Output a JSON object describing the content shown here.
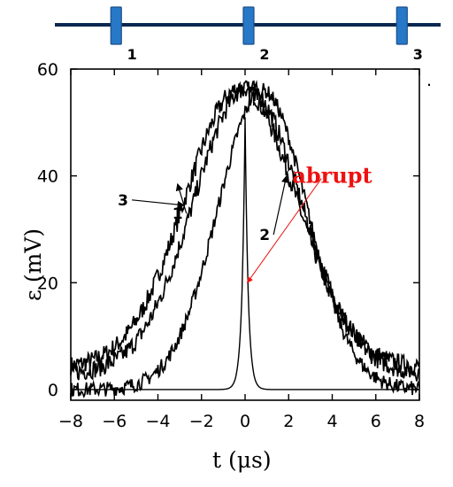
{
  "chart_data": {
    "type": "line",
    "xlabel": "t  (μs)",
    "ylabel": "ε (mV)",
    "xlim": [
      -8,
      8
    ],
    "ylim": [
      -2,
      60
    ],
    "xticks": [
      -8,
      -6,
      -4,
      -2,
      0,
      2,
      4,
      6,
      8
    ],
    "yticks": [
      0,
      20,
      40,
      60
    ],
    "grid": false,
    "series": [
      {
        "name": "3",
        "shape": "gaussian",
        "center": -0.2,
        "peak": 56.5,
        "sigma": 2.55,
        "baseline": 4,
        "noise": 1.8,
        "color": "#000000"
      },
      {
        "name": "1",
        "shape": "gaussian",
        "center": 0.1,
        "peak": 56.5,
        "sigma": 2.45,
        "baseline": 3,
        "noise": 1.8,
        "color": "#000000"
      },
      {
        "name": "2",
        "shape": "gaussian",
        "center": 0.8,
        "peak": 56,
        "sigma": 2.05,
        "baseline": 0,
        "noise": 1.4,
        "color": "#000000"
      },
      {
        "name": "",
        "shape": "spike",
        "center": 0.0,
        "peak": 51,
        "halfwidth": 0.14,
        "baseline": 0,
        "color": "#000000"
      }
    ],
    "curve_labels": [
      {
        "text": "3",
        "x": -5.6,
        "y": 34.5,
        "arrow_to": [
          -2.8,
          34.5
        ]
      },
      {
        "text": "1",
        "x": -3.1,
        "y": 32,
        "arrow_to": [
          -3.1,
          38.5
        ]
      },
      {
        "text": "2",
        "x": 0.9,
        "y": 28,
        "arrow_to": [
          1.9,
          40
        ]
      }
    ],
    "annotation": {
      "text": "abrupt",
      "color": "#ee1111",
      "x": 4.0,
      "y": 40,
      "arrow_from": [
        3.5,
        39.5
      ],
      "arrow_to": [
        0.1,
        20
      ]
    }
  },
  "probe_diagram": {
    "line_color": "#0a2850",
    "marker_color": "#2878c8",
    "marker_stroke": "#1a4f8a",
    "labels": [
      "1",
      "2",
      "3"
    ],
    "x_positions": [
      -6,
      0,
      7.2
    ]
  },
  "extra_mark": "."
}
